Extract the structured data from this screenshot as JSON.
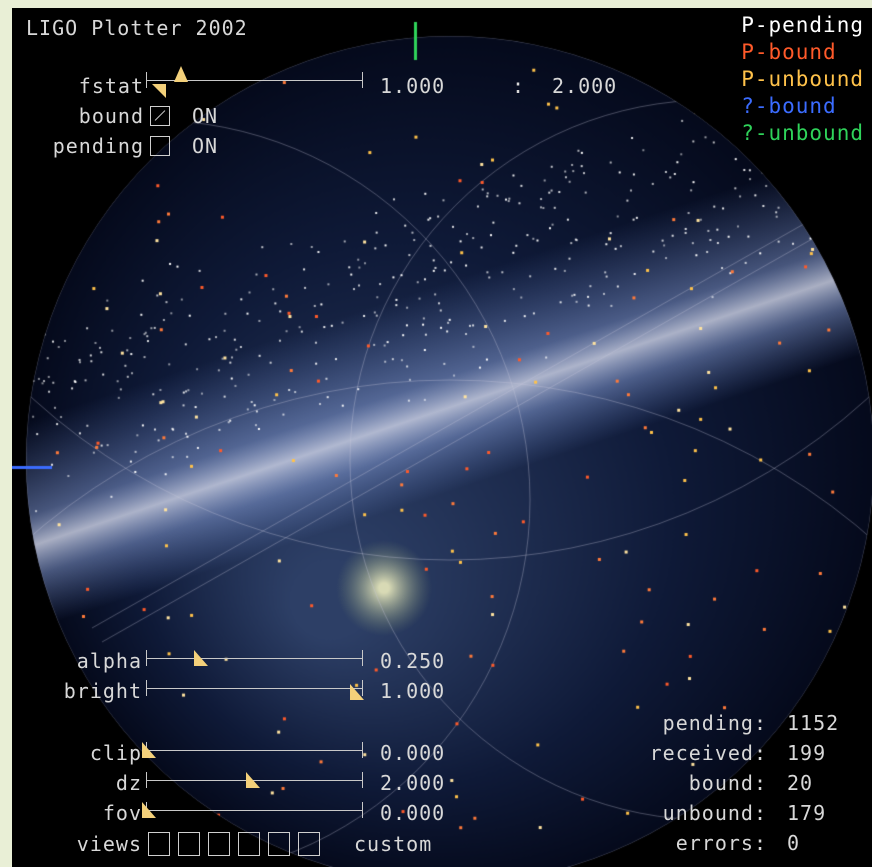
{
  "app": {
    "title": "LIGO Plotter 2002"
  },
  "legend": [
    {
      "label": "P-pending",
      "color": "#ffffff"
    },
    {
      "label": "P-bound",
      "color": "#ff5a2a"
    },
    {
      "label": "P-unbound",
      "color": "#ffc24a"
    },
    {
      "label": "?-bound",
      "color": "#3b6cff"
    },
    {
      "label": "?-unbound",
      "color": "#2fd35a"
    }
  ],
  "controls": {
    "fstat": {
      "label": "fstat",
      "min_value": "1.000",
      "separator": ":",
      "max_value": "2.000",
      "level": 0.0
    },
    "bound": {
      "label": "bound",
      "state": "ON",
      "checked": true
    },
    "pending": {
      "label": "pending",
      "state": "ON",
      "checked": false
    },
    "alpha": {
      "label": "alpha",
      "value": "0.250",
      "level": 0.25
    },
    "bright": {
      "label": "bright",
      "value": "1.000",
      "level": 1.0
    },
    "clip": {
      "label": "clip",
      "value": "0.000",
      "level": 0.0
    },
    "dz": {
      "label": "dz",
      "value": "2.000",
      "level": 0.5
    },
    "fov": {
      "label": "fov",
      "value": "0.000",
      "level": 0.0
    },
    "views": {
      "label": "views",
      "value": "custom",
      "count": 6
    }
  },
  "stats": [
    {
      "label": "pending:",
      "value": "1152"
    },
    {
      "label": "received:",
      "value": "199"
    },
    {
      "label": "bound:",
      "value": "20"
    },
    {
      "label": "unbound:",
      "value": "179"
    },
    {
      "label": "errors:",
      "value": "0"
    }
  ]
}
